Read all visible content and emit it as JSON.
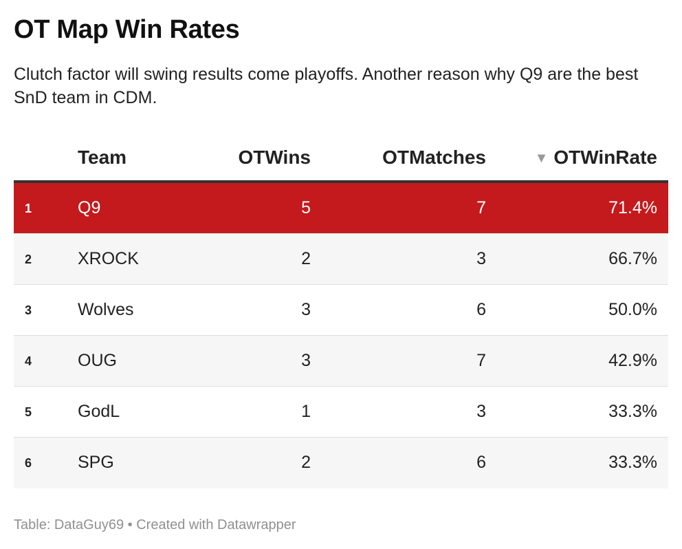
{
  "title": "OT Map Win Rates",
  "subtitle": "Clutch factor will swing results come playoffs. Another reason why Q9 are the best SnD team in CDM.",
  "footer": "Table: DataGuy69 • Created with Datawrapper",
  "colors": {
    "highlight_row": "#c41a1d",
    "alt_row": "#f6f6f6",
    "header_rule": "#333333",
    "footer_text": "#909090"
  },
  "chart_data": {
    "type": "table",
    "columns": [
      "Team",
      "OTWins",
      "OTMatches",
      "OTWinRate"
    ],
    "sorted_by": "OTWinRate",
    "sort_direction": "descending",
    "sort_icon": "sort-descending-triangle-icon",
    "highlighted_team": "Q9",
    "rows": [
      {
        "rank": "1",
        "team": "Q9",
        "wins": "5",
        "matches": "7",
        "rate": "71.4%"
      },
      {
        "rank": "2",
        "team": "XROCK",
        "wins": "2",
        "matches": "3",
        "rate": "66.7%"
      },
      {
        "rank": "3",
        "team": "Wolves",
        "wins": "3",
        "matches": "6",
        "rate": "50.0%"
      },
      {
        "rank": "4",
        "team": "OUG",
        "wins": "3",
        "matches": "7",
        "rate": "42.9%"
      },
      {
        "rank": "5",
        "team": "GodL",
        "wins": "1",
        "matches": "3",
        "rate": "33.3%"
      },
      {
        "rank": "6",
        "team": "SPG",
        "wins": "2",
        "matches": "6",
        "rate": "33.3%"
      }
    ]
  }
}
